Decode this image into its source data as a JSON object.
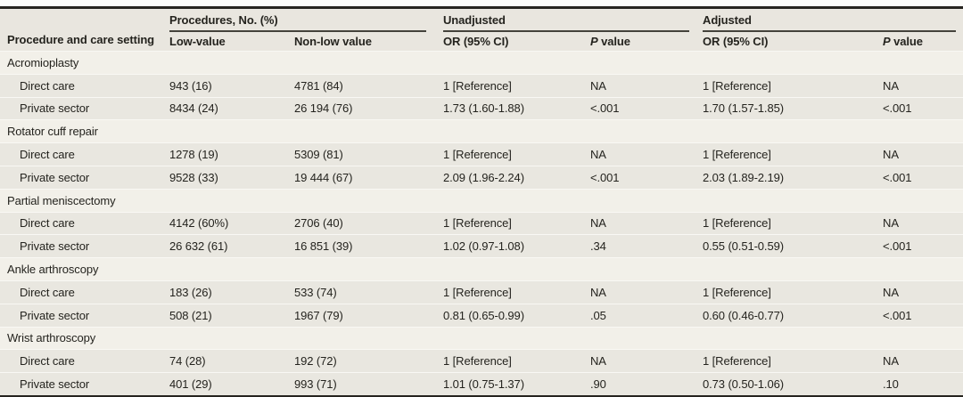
{
  "table": {
    "header": {
      "col1": "Procedure and care setting",
      "group_procedures": "Procedures, No. (%)",
      "group_unadjusted": "Unadjusted",
      "group_adjusted": "Adjusted",
      "sub_low_value": "Low-value",
      "sub_non_low_value": "Non-low value",
      "sub_or_unadjusted": "OR (95% CI)",
      "sub_or_adjusted": "OR (95% CI)",
      "p_label_italic": "P",
      "p_label_rest": "value"
    },
    "sections": [
      {
        "name": "Acromioplasty",
        "rows": [
          {
            "label": "Direct care",
            "low": "943 (16)",
            "nonlow": "4781 (84)",
            "or_u": "1 [Reference]",
            "p_u": "NA",
            "or_a": "1 [Reference]",
            "p_a": "NA"
          },
          {
            "label": "Private sector",
            "low": "8434 (24)",
            "nonlow": "26 194 (76)",
            "or_u": "1.73 (1.60-1.88)",
            "p_u": "<.001",
            "or_a": "1.70 (1.57-1.85)",
            "p_a": "<.001"
          }
        ]
      },
      {
        "name": "Rotator cuff repair",
        "rows": [
          {
            "label": "Direct care",
            "low": "1278 (19)",
            "nonlow": "5309 (81)",
            "or_u": "1 [Reference]",
            "p_u": "NA",
            "or_a": "1 [Reference]",
            "p_a": "NA"
          },
          {
            "label": "Private sector",
            "low": "9528 (33)",
            "nonlow": "19 444 (67)",
            "or_u": "2.09 (1.96-2.24)",
            "p_u": "<.001",
            "or_a": "2.03 (1.89-2.19)",
            "p_a": "<.001"
          }
        ]
      },
      {
        "name": "Partial meniscectomy",
        "rows": [
          {
            "label": "Direct care",
            "low": "4142 (60%)",
            "nonlow": "2706 (40)",
            "or_u": "1 [Reference]",
            "p_u": "NA",
            "or_a": "1 [Reference]",
            "p_a": "NA"
          },
          {
            "label": "Private sector",
            "low": "26 632 (61)",
            "nonlow": "16 851 (39)",
            "or_u": "1.02 (0.97-1.08)",
            "p_u": ".34",
            "or_a": "0.55 (0.51-0.59)",
            "p_a": "<.001"
          }
        ]
      },
      {
        "name": "Ankle arthroscopy",
        "rows": [
          {
            "label": "Direct care",
            "low": "183 (26)",
            "nonlow": "533 (74)",
            "or_u": "1 [Reference]",
            "p_u": "NA",
            "or_a": "1 [Reference]",
            "p_a": "NA"
          },
          {
            "label": "Private sector",
            "low": "508 (21)",
            "nonlow": "1967 (79)",
            "or_u": "0.81 (0.65-0.99)",
            "p_u": ".05",
            "or_a": "0.60 (0.46-0.77)",
            "p_a": "<.001"
          }
        ]
      },
      {
        "name": "Wrist arthroscopy",
        "rows": [
          {
            "label": "Direct care",
            "low": "74 (28)",
            "nonlow": "192 (72)",
            "or_u": "1 [Reference]",
            "p_u": "NA",
            "or_a": "1 [Reference]",
            "p_a": "NA"
          },
          {
            "label": "Private sector",
            "low": "401 (29)",
            "nonlow": "993 (71)",
            "or_u": "1.01 (0.75-1.37)",
            "p_u": ".90",
            "or_a": "0.73 (0.50-1.06)",
            "p_a": ".10"
          }
        ]
      }
    ]
  }
}
